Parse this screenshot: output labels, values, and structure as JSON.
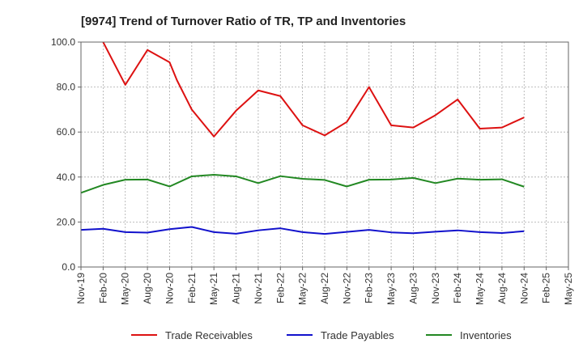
{
  "chart_data": {
    "type": "line",
    "title": "[9974]  Trend of Turnover Ratio of TR, TP and Inventories",
    "xlabel": "",
    "ylabel": "",
    "ylim": [
      0,
      100
    ],
    "yticks": [
      "0.0",
      "20.0",
      "40.0",
      "60.0",
      "80.0",
      "100.0"
    ],
    "x_tick_labels": [
      "Nov-19",
      "Feb-20",
      "May-20",
      "Aug-20",
      "Nov-20",
      "Feb-21",
      "May-21",
      "Aug-21",
      "Nov-21",
      "Feb-22",
      "May-22",
      "Aug-22",
      "Nov-22",
      "Feb-23",
      "May-23",
      "Aug-23",
      "Nov-23",
      "Feb-24",
      "May-24",
      "Aug-24",
      "Nov-24",
      "Feb-25",
      "May-25"
    ],
    "x_months": [
      "2019-11",
      "2019-12",
      "2020-01",
      "2020-02",
      "2020-03",
      "2020-04",
      "2020-05",
      "2020-06",
      "2020-07",
      "2020-08",
      "2020-09",
      "2020-10",
      "2020-11",
      "2020-12",
      "2021-01",
      "2021-02",
      "2021-03",
      "2021-04",
      "2021-05",
      "2021-06",
      "2021-07",
      "2021-08",
      "2021-09",
      "2021-10",
      "2021-11",
      "2021-12",
      "2022-01",
      "2022-02",
      "2022-03",
      "2022-04",
      "2022-05",
      "2022-06",
      "2022-07",
      "2022-08",
      "2022-09",
      "2022-10",
      "2022-11",
      "2022-12",
      "2023-01",
      "2023-02",
      "2023-03",
      "2023-04",
      "2023-05",
      "2023-06",
      "2023-07",
      "2023-08",
      "2023-09",
      "2023-10",
      "2023-11",
      "2023-12",
      "2024-01",
      "2024-02",
      "2024-03",
      "2024-04",
      "2024-05",
      "2024-06",
      "2024-07",
      "2024-08",
      "2024-09",
      "2024-10",
      "2024-11",
      "2024-12",
      "2025-01",
      "2025-02",
      "2025-03",
      "2025-04",
      "2025-05"
    ],
    "grid": true,
    "legend_position": "bottom",
    "series": [
      {
        "name": "Trade Receivables",
        "color": "#dd1111",
        "points": [
          [
            "2020-02",
            100.0
          ],
          [
            "2020-05",
            81.0
          ],
          [
            "2020-08",
            96.5
          ],
          [
            "2020-11",
            91.0
          ],
          [
            "2020-12",
            83.0
          ],
          [
            "2021-02",
            70.0
          ],
          [
            "2021-05",
            58.0
          ],
          [
            "2021-08",
            69.5
          ],
          [
            "2021-11",
            78.5
          ],
          [
            "2022-02",
            76.0
          ],
          [
            "2022-05",
            63.0
          ],
          [
            "2022-08",
            58.5
          ],
          [
            "2022-11",
            64.5
          ],
          [
            "2023-02",
            80.0
          ],
          [
            "2023-05",
            63.0
          ],
          [
            "2023-08",
            62.0
          ],
          [
            "2023-11",
            67.5
          ],
          [
            "2024-02",
            74.5
          ],
          [
            "2024-05",
            61.5
          ],
          [
            "2024-08",
            62.0
          ],
          [
            "2024-11",
            66.5
          ]
        ]
      },
      {
        "name": "Trade Payables",
        "color": "#1111cc",
        "points": [
          [
            "2019-11",
            16.5
          ],
          [
            "2020-02",
            17.0
          ],
          [
            "2020-05",
            15.5
          ],
          [
            "2020-08",
            15.3
          ],
          [
            "2020-11",
            16.8
          ],
          [
            "2021-02",
            17.8
          ],
          [
            "2021-05",
            15.5
          ],
          [
            "2021-08",
            14.8
          ],
          [
            "2021-11",
            16.3
          ],
          [
            "2022-02",
            17.2
          ],
          [
            "2022-05",
            15.5
          ],
          [
            "2022-08",
            14.7
          ],
          [
            "2022-11",
            15.6
          ],
          [
            "2023-02",
            16.5
          ],
          [
            "2023-05",
            15.4
          ],
          [
            "2023-08",
            15.0
          ],
          [
            "2023-11",
            15.7
          ],
          [
            "2024-02",
            16.3
          ],
          [
            "2024-05",
            15.5
          ],
          [
            "2024-08",
            15.1
          ],
          [
            "2024-11",
            15.9
          ]
        ]
      },
      {
        "name": "Inventories",
        "color": "#228822",
        "points": [
          [
            "2019-11",
            33.0
          ],
          [
            "2020-02",
            36.5
          ],
          [
            "2020-05",
            38.8
          ],
          [
            "2020-08",
            38.9
          ],
          [
            "2020-11",
            35.8
          ],
          [
            "2021-02",
            40.3
          ],
          [
            "2021-05",
            41.0
          ],
          [
            "2021-08",
            40.3
          ],
          [
            "2021-11",
            37.3
          ],
          [
            "2022-02",
            40.4
          ],
          [
            "2022-05",
            39.2
          ],
          [
            "2022-08",
            38.7
          ],
          [
            "2022-11",
            35.8
          ],
          [
            "2023-02",
            38.8
          ],
          [
            "2023-05",
            38.9
          ],
          [
            "2023-08",
            39.6
          ],
          [
            "2023-11",
            37.3
          ],
          [
            "2024-02",
            39.3
          ],
          [
            "2024-05",
            38.8
          ],
          [
            "2024-08",
            39.0
          ],
          [
            "2024-11",
            35.7
          ]
        ]
      }
    ]
  }
}
